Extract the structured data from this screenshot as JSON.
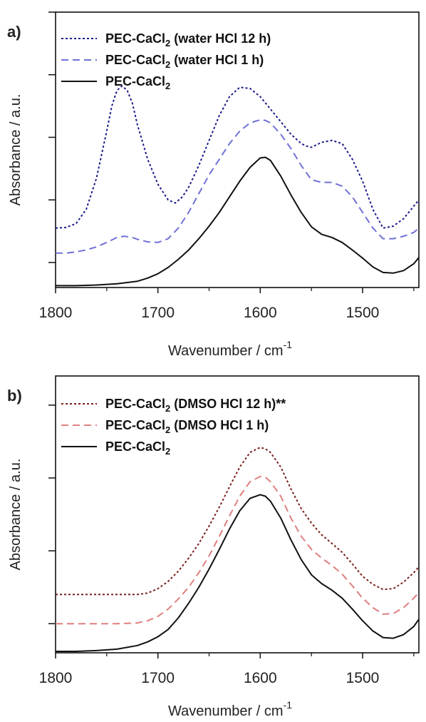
{
  "chart_data": [
    {
      "panel_label": "a)",
      "type": "line",
      "xlabel": "Wavenumber / cm",
      "xlabel_sup": "-1",
      "ylabel": "Absorbance / a.u.",
      "xlim": [
        1800,
        1445
      ],
      "ylim": [
        0,
        4.4
      ],
      "x_ticks": [
        1800,
        1700,
        1600,
        1500
      ],
      "y_ticks": [
        0.4,
        1.4,
        2.4,
        3.4,
        4.4
      ],
      "legend_position": "top-left",
      "series": [
        {
          "name": "PEC-CaCl",
          "name_sub": "2",
          "name_suffix": " (water HCl 12 h)",
          "color": "#1a1a8c",
          "dash": "3,3",
          "x": [
            1800,
            1790,
            1780,
            1770,
            1760,
            1750,
            1745,
            1740,
            1735,
            1730,
            1725,
            1720,
            1710,
            1700,
            1690,
            1683,
            1676,
            1670,
            1660,
            1650,
            1640,
            1630,
            1620,
            1610,
            1600,
            1590,
            1580,
            1570,
            1560,
            1555,
            1550,
            1545,
            1540,
            1530,
            1520,
            1510,
            1500,
            1490,
            1480,
            1470,
            1460,
            1450,
            1445
          ],
          "y": [
            0.95,
            0.96,
            1.02,
            1.25,
            1.75,
            2.5,
            2.9,
            3.15,
            3.22,
            3.15,
            2.95,
            2.6,
            2.05,
            1.65,
            1.4,
            1.35,
            1.45,
            1.6,
            1.95,
            2.35,
            2.75,
            3.05,
            3.2,
            3.18,
            3.05,
            2.85,
            2.65,
            2.45,
            2.3,
            2.26,
            2.24,
            2.28,
            2.32,
            2.35,
            2.3,
            2.05,
            1.7,
            1.25,
            0.95,
            0.98,
            1.1,
            1.3,
            1.4
          ]
        },
        {
          "name": "PEC-CaCl",
          "name_sub": "2",
          "name_suffix": " (water HCl 1 h)",
          "color": "#7070d8",
          "dash": "10,6",
          "x": [
            1800,
            1790,
            1780,
            1770,
            1760,
            1750,
            1740,
            1733,
            1725,
            1720,
            1710,
            1700,
            1690,
            1680,
            1670,
            1660,
            1650,
            1640,
            1630,
            1620,
            1610,
            1600,
            1595,
            1590,
            1580,
            1570,
            1560,
            1550,
            1540,
            1530,
            1520,
            1510,
            1500,
            1490,
            1480,
            1470,
            1460,
            1450,
            1445
          ],
          "y": [
            0.55,
            0.55,
            0.57,
            0.6,
            0.65,
            0.72,
            0.8,
            0.82,
            0.8,
            0.77,
            0.73,
            0.72,
            0.78,
            0.95,
            1.2,
            1.5,
            1.8,
            2.05,
            2.3,
            2.5,
            2.63,
            2.68,
            2.67,
            2.63,
            2.45,
            2.22,
            1.95,
            1.72,
            1.68,
            1.68,
            1.62,
            1.45,
            1.2,
            0.95,
            0.78,
            0.78,
            0.82,
            0.88,
            0.95
          ]
        },
        {
          "name": "PEC-CaCl",
          "name_sub": "2",
          "name_suffix": "",
          "color": "#111111",
          "dash": "",
          "x": [
            1800,
            1780,
            1760,
            1740,
            1720,
            1710,
            1700,
            1690,
            1680,
            1670,
            1660,
            1650,
            1640,
            1630,
            1620,
            1610,
            1600,
            1595,
            1590,
            1580,
            1570,
            1560,
            1550,
            1540,
            1530,
            1520,
            1510,
            1500,
            1490,
            1480,
            1470,
            1460,
            1450,
            1445
          ],
          "y": [
            0.03,
            0.03,
            0.04,
            0.06,
            0.1,
            0.15,
            0.22,
            0.32,
            0.45,
            0.6,
            0.78,
            0.98,
            1.2,
            1.45,
            1.7,
            1.92,
            2.07,
            2.08,
            2.03,
            1.78,
            1.48,
            1.2,
            0.97,
            0.85,
            0.8,
            0.72,
            0.6,
            0.47,
            0.33,
            0.24,
            0.23,
            0.27,
            0.38,
            0.48
          ]
        }
      ]
    },
    {
      "panel_label": "b)",
      "type": "line",
      "xlabel": "Wavenumber / cm",
      "xlabel_sup": "-1",
      "ylabel": "Absorbance / a.u.",
      "xlim": [
        1800,
        1445
      ],
      "ylim": [
        0,
        3.8
      ],
      "x_ticks": [
        1800,
        1700,
        1600,
        1500
      ],
      "y_ticks": [
        0.4,
        1.4,
        2.4,
        3.4
      ],
      "legend_position": "top-left",
      "series": [
        {
          "name": "PEC-CaCl",
          "name_sub": "2",
          "name_suffix": " (DMSO HCl 12 h)**",
          "color": "#7a1f1f",
          "dash": "3,3",
          "x": [
            1800,
            1780,
            1760,
            1740,
            1720,
            1710,
            1700,
            1690,
            1680,
            1670,
            1660,
            1650,
            1640,
            1630,
            1620,
            1610,
            1600,
            1595,
            1590,
            1580,
            1570,
            1560,
            1550,
            1540,
            1530,
            1520,
            1510,
            1500,
            1490,
            1480,
            1470,
            1460,
            1450,
            1445
          ],
          "y": [
            0.8,
            0.8,
            0.8,
            0.8,
            0.8,
            0.82,
            0.88,
            0.98,
            1.12,
            1.3,
            1.5,
            1.74,
            2.0,
            2.28,
            2.55,
            2.75,
            2.82,
            2.8,
            2.75,
            2.55,
            2.25,
            1.98,
            1.78,
            1.62,
            1.5,
            1.38,
            1.22,
            1.05,
            0.94,
            0.87,
            0.88,
            0.97,
            1.1,
            1.18
          ]
        },
        {
          "name": "PEC-CaCl",
          "name_sub": "2",
          "name_suffix": " (DMSO HCl 1 h)",
          "color": "#e07f7f",
          "dash": "10,6",
          "x": [
            1800,
            1780,
            1760,
            1740,
            1720,
            1710,
            1700,
            1690,
            1680,
            1670,
            1660,
            1650,
            1640,
            1630,
            1620,
            1610,
            1600,
            1595,
            1590,
            1580,
            1570,
            1560,
            1550,
            1540,
            1530,
            1520,
            1510,
            1500,
            1490,
            1480,
            1470,
            1460,
            1450,
            1445
          ],
          "y": [
            0.4,
            0.4,
            0.4,
            0.4,
            0.41,
            0.44,
            0.5,
            0.6,
            0.74,
            0.9,
            1.1,
            1.33,
            1.6,
            1.88,
            2.15,
            2.35,
            2.42,
            2.41,
            2.35,
            2.15,
            1.85,
            1.6,
            1.42,
            1.3,
            1.2,
            1.08,
            0.92,
            0.75,
            0.62,
            0.53,
            0.54,
            0.62,
            0.75,
            0.83
          ]
        },
        {
          "name": "PEC-CaCl",
          "name_sub": "2",
          "name_suffix": "",
          "color": "#111111",
          "dash": "",
          "x": [
            1800,
            1780,
            1760,
            1740,
            1720,
            1710,
            1700,
            1690,
            1680,
            1670,
            1660,
            1650,
            1640,
            1630,
            1620,
            1610,
            1600,
            1595,
            1590,
            1580,
            1570,
            1560,
            1550,
            1540,
            1530,
            1520,
            1510,
            1500,
            1490,
            1480,
            1470,
            1460,
            1450,
            1445
          ],
          "y": [
            0.02,
            0.02,
            0.03,
            0.05,
            0.1,
            0.15,
            0.22,
            0.32,
            0.48,
            0.68,
            0.9,
            1.15,
            1.42,
            1.7,
            1.95,
            2.12,
            2.17,
            2.15,
            2.08,
            1.85,
            1.55,
            1.28,
            1.07,
            0.95,
            0.86,
            0.75,
            0.6,
            0.44,
            0.3,
            0.21,
            0.2,
            0.25,
            0.36,
            0.46
          ]
        }
      ]
    }
  ]
}
